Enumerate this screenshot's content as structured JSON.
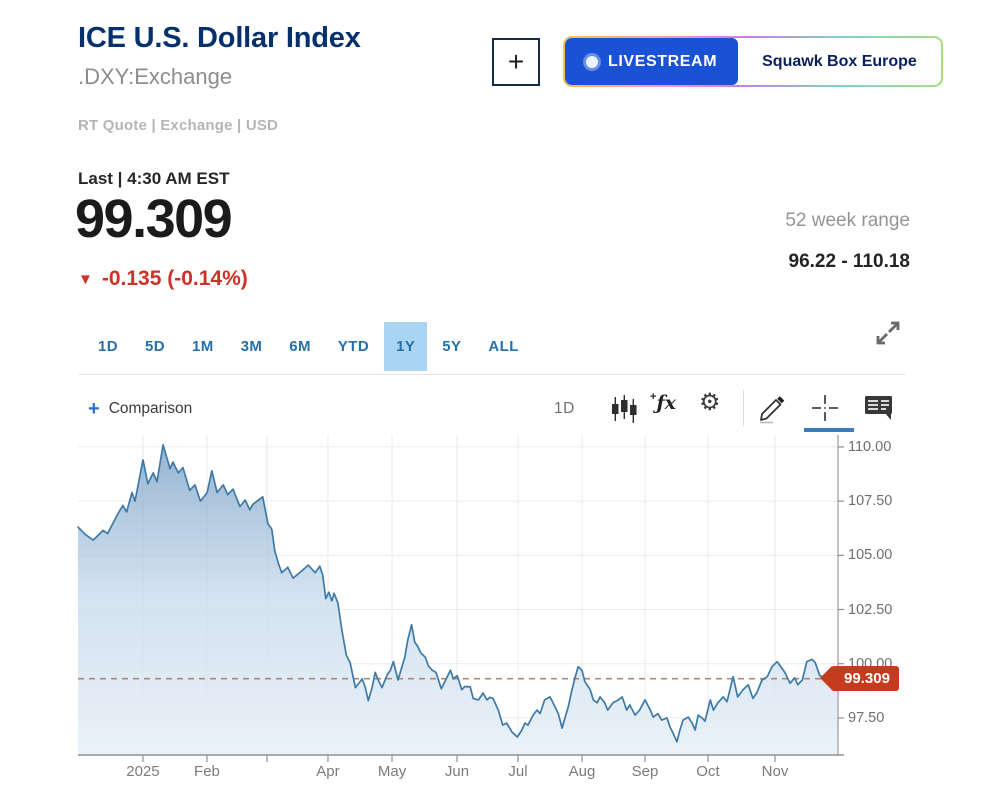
{
  "colors": {
    "brand_navy": "#04316e",
    "tab_blue": "#2470ab",
    "tab_selected_bg": "#a9d4f2",
    "change_red": "#d03127",
    "livestream_blue": "#1a52d6",
    "toolbar_underline_blue": "#3c7dc0"
  },
  "header": {
    "title": "ICE U.S. Dollar Index",
    "symbol": ".DXY:Exchange",
    "meta": "RT Quote | Exchange | USD",
    "add_label": "+"
  },
  "livestream": {
    "badge": "LIVESTREAM",
    "show": "Squawk Box Europe"
  },
  "quote": {
    "last_label": "Last | 4:30 AM EST",
    "price": "99.309",
    "arrow": "▼",
    "change": "-0.135 (-0.14%)",
    "range_label": "52 week range",
    "range_value": "96.22 - 110.18"
  },
  "ranges": {
    "items": [
      "1D",
      "5D",
      "1M",
      "3M",
      "6M",
      "YTD",
      "1Y",
      "5Y",
      "ALL"
    ],
    "selected": "1Y"
  },
  "toolbar": {
    "comparison_plus": "+",
    "comparison_label": "Comparison",
    "interval": "1D",
    "fx_plus": "+",
    "fx": "ƒx",
    "gear": "⚙"
  },
  "chart_data": {
    "type": "area",
    "series_name": ".DXY 1Y",
    "ylim": [
      95.79,
      110.55
    ],
    "grid": true,
    "legend": false,
    "y_ticks": [
      {
        "label": "110.00",
        "value": 110.0
      },
      {
        "label": "107.50",
        "value": 107.5
      },
      {
        "label": "105.00",
        "value": 105.0
      },
      {
        "label": "102.50",
        "value": 102.5
      },
      {
        "label": "100.00",
        "value": 100.0
      },
      {
        "label": "97.50",
        "value": 97.5
      }
    ],
    "x_ticks": [
      {
        "label": "2025",
        "f": 0.0855
      },
      {
        "label": "Feb",
        "f": 0.1697
      },
      {
        "label": "Apr",
        "f": 0.3289
      },
      {
        "label": "May",
        "f": 0.4132
      },
      {
        "label": "Jun",
        "f": 0.4987
      },
      {
        "label": "Jul",
        "f": 0.5789
      },
      {
        "label": "Aug",
        "f": 0.6632
      },
      {
        "label": "Sep",
        "f": 0.7461
      },
      {
        "label": "Oct",
        "f": 0.8289
      },
      {
        "label": "Nov",
        "f": 0.9171
      }
    ],
    "x_gridlines": [
      0.0855,
      0.1697,
      0.2487,
      0.3289,
      0.4132,
      0.4987,
      0.5789,
      0.6632,
      0.7461,
      0.8289,
      0.9171
    ],
    "price_line": 99.309,
    "price_label": "99.309",
    "line_color": "#3e7aa6",
    "dash_color": "#ab7b64",
    "badge_color": "#c43b1d",
    "dot_color": "#4e92d5",
    "fill_top": "rgba(125,162,198,0.80)",
    "fill_mid": "rgba(198,218,236,0.75)",
    "fill_bottom": "rgba(233,241,248,0.90)",
    "points": [
      [
        0.0,
        106.3
      ],
      [
        0.01,
        105.95
      ],
      [
        0.02,
        105.7
      ],
      [
        0.033,
        106.15
      ],
      [
        0.039,
        106.0
      ],
      [
        0.053,
        106.95
      ],
      [
        0.059,
        107.3
      ],
      [
        0.064,
        107.0
      ],
      [
        0.071,
        107.9
      ],
      [
        0.075,
        107.5
      ],
      [
        0.0855,
        109.4
      ],
      [
        0.092,
        108.3
      ],
      [
        0.099,
        108.8
      ],
      [
        0.104,
        108.4
      ],
      [
        0.112,
        110.1
      ],
      [
        0.121,
        109.0
      ],
      [
        0.125,
        109.3
      ],
      [
        0.132,
        108.8
      ],
      [
        0.138,
        109.05
      ],
      [
        0.147,
        108.0
      ],
      [
        0.154,
        108.25
      ],
      [
        0.161,
        107.5
      ],
      [
        0.17,
        107.9
      ],
      [
        0.176,
        108.9
      ],
      [
        0.183,
        107.9
      ],
      [
        0.191,
        108.25
      ],
      [
        0.197,
        107.8
      ],
      [
        0.204,
        108.05
      ],
      [
        0.213,
        107.25
      ],
      [
        0.22,
        107.55
      ],
      [
        0.226,
        107.1
      ],
      [
        0.23,
        107.35
      ],
      [
        0.243,
        107.7
      ],
      [
        0.25,
        106.45
      ],
      [
        0.255,
        106.2
      ],
      [
        0.259,
        105.2
      ],
      [
        0.264,
        104.6
      ],
      [
        0.268,
        104.2
      ],
      [
        0.276,
        104.45
      ],
      [
        0.283,
        103.95
      ],
      [
        0.295,
        104.3
      ],
      [
        0.303,
        104.55
      ],
      [
        0.312,
        104.2
      ],
      [
        0.318,
        104.5
      ],
      [
        0.322,
        104.1
      ],
      [
        0.326,
        103.0
      ],
      [
        0.33,
        103.3
      ],
      [
        0.334,
        102.9
      ],
      [
        0.337,
        103.25
      ],
      [
        0.342,
        102.8
      ],
      [
        0.347,
        101.6
      ],
      [
        0.353,
        100.4
      ],
      [
        0.358,
        100.05
      ],
      [
        0.362,
        99.4
      ],
      [
        0.365,
        98.9
      ],
      [
        0.374,
        99.3
      ],
      [
        0.378,
        98.9
      ],
      [
        0.382,
        98.3
      ],
      [
        0.387,
        98.9
      ],
      [
        0.391,
        99.6
      ],
      [
        0.395,
        99.25
      ],
      [
        0.4,
        98.9
      ],
      [
        0.407,
        99.5
      ],
      [
        0.411,
        99.7
      ],
      [
        0.415,
        100.1
      ],
      [
        0.421,
        99.25
      ],
      [
        0.43,
        100.3
      ],
      [
        0.434,
        101.1
      ],
      [
        0.439,
        101.8
      ],
      [
        0.443,
        101.0
      ],
      [
        0.447,
        100.8
      ],
      [
        0.451,
        100.5
      ],
      [
        0.457,
        100.3
      ],
      [
        0.461,
        99.9
      ],
      [
        0.466,
        99.7
      ],
      [
        0.471,
        99.6
      ],
      [
        0.478,
        98.85
      ],
      [
        0.483,
        99.2
      ],
      [
        0.49,
        99.7
      ],
      [
        0.494,
        99.3
      ],
      [
        0.499,
        99.45
      ],
      [
        0.505,
        98.8
      ],
      [
        0.509,
        98.95
      ],
      [
        0.516,
        98.93
      ],
      [
        0.52,
        98.4
      ],
      [
        0.527,
        98.33
      ],
      [
        0.533,
        98.65
      ],
      [
        0.538,
        98.33
      ],
      [
        0.542,
        98.45
      ],
      [
        0.546,
        98.4
      ],
      [
        0.553,
        97.86
      ],
      [
        0.559,
        97.17
      ],
      [
        0.564,
        97.26
      ],
      [
        0.571,
        96.85
      ],
      [
        0.578,
        96.62
      ],
      [
        0.584,
        96.94
      ],
      [
        0.588,
        97.26
      ],
      [
        0.592,
        97.17
      ],
      [
        0.599,
        97.63
      ],
      [
        0.604,
        97.86
      ],
      [
        0.608,
        97.7
      ],
      [
        0.614,
        98.33
      ],
      [
        0.621,
        98.47
      ],
      [
        0.625,
        98.2
      ],
      [
        0.632,
        97.7
      ],
      [
        0.637,
        97.03
      ],
      [
        0.641,
        97.54
      ],
      [
        0.645,
        98.0
      ],
      [
        0.65,
        98.8
      ],
      [
        0.654,
        99.35
      ],
      [
        0.658,
        99.86
      ],
      [
        0.663,
        99.7
      ],
      [
        0.667,
        99.17
      ],
      [
        0.674,
        98.8
      ],
      [
        0.678,
        98.33
      ],
      [
        0.683,
        98.2
      ],
      [
        0.687,
        98.47
      ],
      [
        0.693,
        98.2
      ],
      [
        0.697,
        97.86
      ],
      [
        0.704,
        98.2
      ],
      [
        0.711,
        98.33
      ],
      [
        0.716,
        98.47
      ],
      [
        0.722,
        97.86
      ],
      [
        0.726,
        98.1
      ],
      [
        0.733,
        97.63
      ],
      [
        0.739,
        97.86
      ],
      [
        0.746,
        98.33
      ],
      [
        0.753,
        97.86
      ],
      [
        0.757,
        97.54
      ],
      [
        0.763,
        97.7
      ],
      [
        0.768,
        97.4
      ],
      [
        0.775,
        97.5
      ],
      [
        0.779,
        97.08
      ],
      [
        0.783,
        96.8
      ],
      [
        0.788,
        96.4
      ],
      [
        0.792,
        96.94
      ],
      [
        0.796,
        97.4
      ],
      [
        0.803,
        97.54
      ],
      [
        0.808,
        97.26
      ],
      [
        0.812,
        96.94
      ],
      [
        0.816,
        97.63
      ],
      [
        0.821,
        97.5
      ],
      [
        0.825,
        97.35
      ],
      [
        0.832,
        98.33
      ],
      [
        0.836,
        97.86
      ],
      [
        0.842,
        98.2
      ],
      [
        0.849,
        98.47
      ],
      [
        0.854,
        98.25
      ],
      [
        0.862,
        99.4
      ],
      [
        0.868,
        98.47
      ],
      [
        0.875,
        98.8
      ],
      [
        0.882,
        99.03
      ],
      [
        0.888,
        98.4
      ],
      [
        0.893,
        98.65
      ],
      [
        0.9,
        99.25
      ],
      [
        0.907,
        99.4
      ],
      [
        0.913,
        99.86
      ],
      [
        0.92,
        100.1
      ],
      [
        0.926,
        99.8
      ],
      [
        0.93,
        99.6
      ],
      [
        0.937,
        99.1
      ],
      [
        0.943,
        99.35
      ],
      [
        0.947,
        99.03
      ],
      [
        0.953,
        99.25
      ],
      [
        0.959,
        100.1
      ],
      [
        0.966,
        100.2
      ],
      [
        0.97,
        100.05
      ],
      [
        0.976,
        99.45
      ],
      [
        0.98,
        99.4
      ],
      [
        0.987,
        99.35
      ],
      [
        0.993,
        99.3
      ],
      [
        1.0,
        99.31
      ]
    ]
  }
}
